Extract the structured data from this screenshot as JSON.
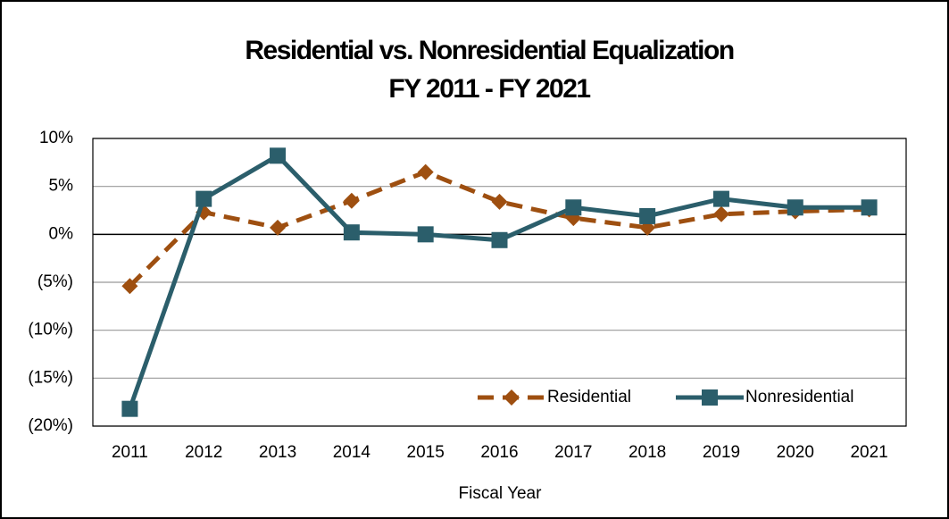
{
  "chart_data": {
    "type": "line",
    "title": [
      "Residential vs. Nonresidential Equalization",
      "FY 2011 - FY 2021"
    ],
    "x_label": "Fiscal Year",
    "categories": [
      "2011",
      "2012",
      "2013",
      "2014",
      "2015",
      "2016",
      "2017",
      "2018",
      "2019",
      "2020",
      "2021"
    ],
    "series": [
      {
        "name": "Residential",
        "color": "#9e4f10",
        "line_style": "dashed",
        "marker": "diamond",
        "values": [
          -5.4,
          2.3,
          0.7,
          3.5,
          6.5,
          3.4,
          1.7,
          0.7,
          2.1,
          2.4,
          2.6
        ]
      },
      {
        "name": "Nonresidential",
        "color": "#2b5e6b",
        "line_style": "solid",
        "marker": "square",
        "values": [
          -18.2,
          3.7,
          8.2,
          0.2,
          0,
          -0.6,
          2.8,
          1.9,
          3.7,
          2.8,
          2.8
        ]
      }
    ],
    "ylim": [
      -20,
      10
    ],
    "yticks": [
      {
        "value": -20,
        "label": "(20%)"
      },
      {
        "value": -15,
        "label": "(15%)"
      },
      {
        "value": -10,
        "label": "(10%)"
      },
      {
        "value": -5,
        "label": "(5%)"
      },
      {
        "value": 0,
        "label": "0%"
      },
      {
        "value": 5,
        "label": "5%"
      },
      {
        "value": 10,
        "label": "10%"
      }
    ],
    "grid": true,
    "legend": "lower right"
  }
}
